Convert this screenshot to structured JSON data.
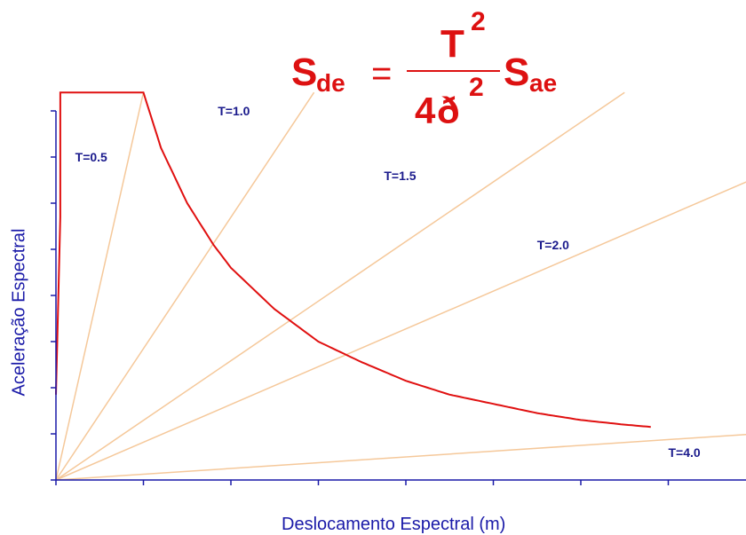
{
  "formula": {
    "lhs_main": "S",
    "lhs_sub": "de",
    "equals": "=",
    "numerator_main": "T",
    "numerator_exp": "2",
    "denominator_coef": "4",
    "denominator_symbol": "ð",
    "denominator_exp": "2",
    "rhs_main": "S",
    "rhs_sub": "ae"
  },
  "chart_data": {
    "type": "line",
    "title": "",
    "xlabel": "Deslocamento Espectral (m)",
    "ylabel": "Aceleração Espectral",
    "xlim": [
      0,
      8
    ],
    "ylim": [
      0,
      8
    ],
    "x_ticks": [
      0,
      1,
      2,
      3,
      4,
      5,
      6,
      7,
      8
    ],
    "y_ticks": [
      0,
      1,
      2,
      3,
      4,
      5,
      6,
      7,
      8
    ],
    "tick_labels_shown": false,
    "capacity_curve": {
      "name": "",
      "color": "#e01010",
      "points": [
        [
          0.0,
          1.85
        ],
        [
          0.05,
          5.7
        ],
        [
          0.05,
          8.4
        ],
        [
          1.0,
          8.4
        ],
        [
          1.2,
          7.2
        ],
        [
          1.5,
          6.0
        ],
        [
          1.8,
          5.1
        ],
        [
          2.0,
          4.6
        ],
        [
          2.5,
          3.7
        ],
        [
          3.0,
          3.0
        ],
        [
          3.5,
          2.55
        ],
        [
          4.0,
          2.15
        ],
        [
          4.5,
          1.85
        ],
        [
          5.0,
          1.65
        ],
        [
          5.5,
          1.45
        ],
        [
          6.0,
          1.3
        ],
        [
          6.5,
          1.2
        ],
        [
          6.8,
          1.15
        ]
      ]
    },
    "period_lines": {
      "color": "#f5c89a",
      "series": [
        {
          "label": "T=0.5",
          "end": [
            1.0,
            8.4
          ]
        },
        {
          "label": "T=1.0",
          "end": [
            2.95,
            8.4
          ]
        },
        {
          "label": "T=1.5",
          "end": [
            6.5,
            8.4
          ]
        },
        {
          "label": "T=2.0",
          "end": [
            8.0,
            6.55
          ]
        },
        {
          "label": "T=4.0",
          "end": [
            8.0,
            1.0
          ]
        }
      ]
    },
    "annotations": [
      {
        "text": "T=0.5",
        "x": 0.22,
        "y": 6.9
      },
      {
        "text": "T=1.0",
        "x": 1.85,
        "y": 7.9
      },
      {
        "text": "T=1.5",
        "x": 3.75,
        "y": 6.5
      },
      {
        "text": "T=2.0",
        "x": 5.5,
        "y": 5.0
      },
      {
        "text": "T=4.0",
        "x": 7.0,
        "y": 0.5
      }
    ],
    "axis_color": "#1a1aa8",
    "label_color": "#1a1aa8",
    "annotation_color": "#1a1a8c",
    "grid": false,
    "legend": "none"
  }
}
